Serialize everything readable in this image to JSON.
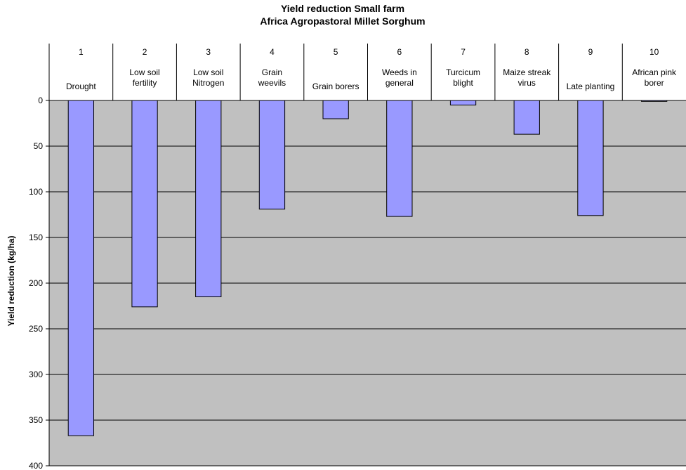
{
  "chart_data": {
    "type": "bar",
    "title": "Yield reduction Small  farm",
    "subtitle": "Africa Agropastoral Millet Sorghum",
    "ylabel": "Yield reduction (kg/ha)",
    "xlabel": "",
    "ylim": [
      0,
      400
    ],
    "y_axis_inverted": true,
    "y_ticks": [
      0,
      50,
      100,
      150,
      200,
      250,
      300,
      350,
      400
    ],
    "grid": true,
    "plot_background": "#c0c0c0",
    "bar_color": "#9999ff",
    "categories": [
      {
        "number": "1",
        "name": [
          "Drought"
        ]
      },
      {
        "number": "2",
        "name": [
          "Low soil",
          "fertility"
        ]
      },
      {
        "number": "3",
        "name": [
          "Low soil",
          "Nitrogen"
        ]
      },
      {
        "number": "4",
        "name": [
          "Grain",
          "weevils"
        ]
      },
      {
        "number": "5",
        "name": [
          "Grain borers"
        ]
      },
      {
        "number": "6",
        "name": [
          "Weeds in",
          "general"
        ]
      },
      {
        "number": "7",
        "name": [
          "Turcicum",
          "blight"
        ]
      },
      {
        "number": "8",
        "name": [
          "Maize streak",
          "virus"
        ]
      },
      {
        "number": "9",
        "name": [
          "Late planting"
        ]
      },
      {
        "number": "10",
        "name": [
          "African pink",
          "borer"
        ]
      }
    ],
    "values": [
      367,
      226,
      215,
      119,
      20,
      127,
      5,
      37,
      126,
      1
    ]
  }
}
